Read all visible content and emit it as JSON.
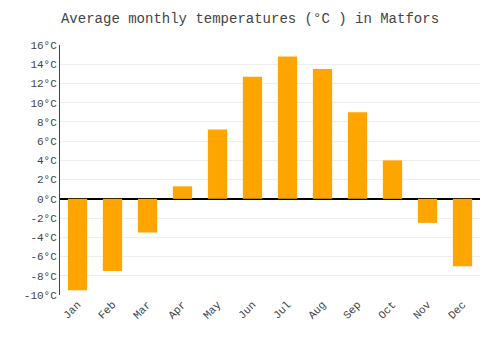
{
  "chart_data": {
    "type": "bar",
    "title": "Average monthly temperatures (°C ) in Matfors",
    "categories": [
      "Jan",
      "Feb",
      "Mar",
      "Apr",
      "May",
      "Jun",
      "Jul",
      "Aug",
      "Sep",
      "Oct",
      "Nov",
      "Dec"
    ],
    "values": [
      -9.5,
      -7.5,
      -3.5,
      1.3,
      7.2,
      12.7,
      14.8,
      13.5,
      9.0,
      4.0,
      -2.5,
      -7.0
    ],
    "color": "#FFA500",
    "ylim": [
      -10,
      16
    ],
    "yticks": [
      {
        "value": -10,
        "label": "-10°C"
      },
      {
        "value": -8,
        "label": "-8°C"
      },
      {
        "value": -6,
        "label": "-6°C"
      },
      {
        "value": -4,
        "label": "-4°C"
      },
      {
        "value": -2,
        "label": "-2°C"
      },
      {
        "value": 0,
        "label": "0°C"
      },
      {
        "value": 2,
        "label": "2°C"
      },
      {
        "value": 4,
        "label": "4°C"
      },
      {
        "value": 6,
        "label": "6°C"
      },
      {
        "value": 8,
        "label": "8°C"
      },
      {
        "value": 10,
        "label": "10°C"
      },
      {
        "value": 12,
        "label": "12°C"
      },
      {
        "value": 14,
        "label": "14°C"
      },
      {
        "value": 16,
        "label": "16°C"
      }
    ],
    "grid": true
  }
}
